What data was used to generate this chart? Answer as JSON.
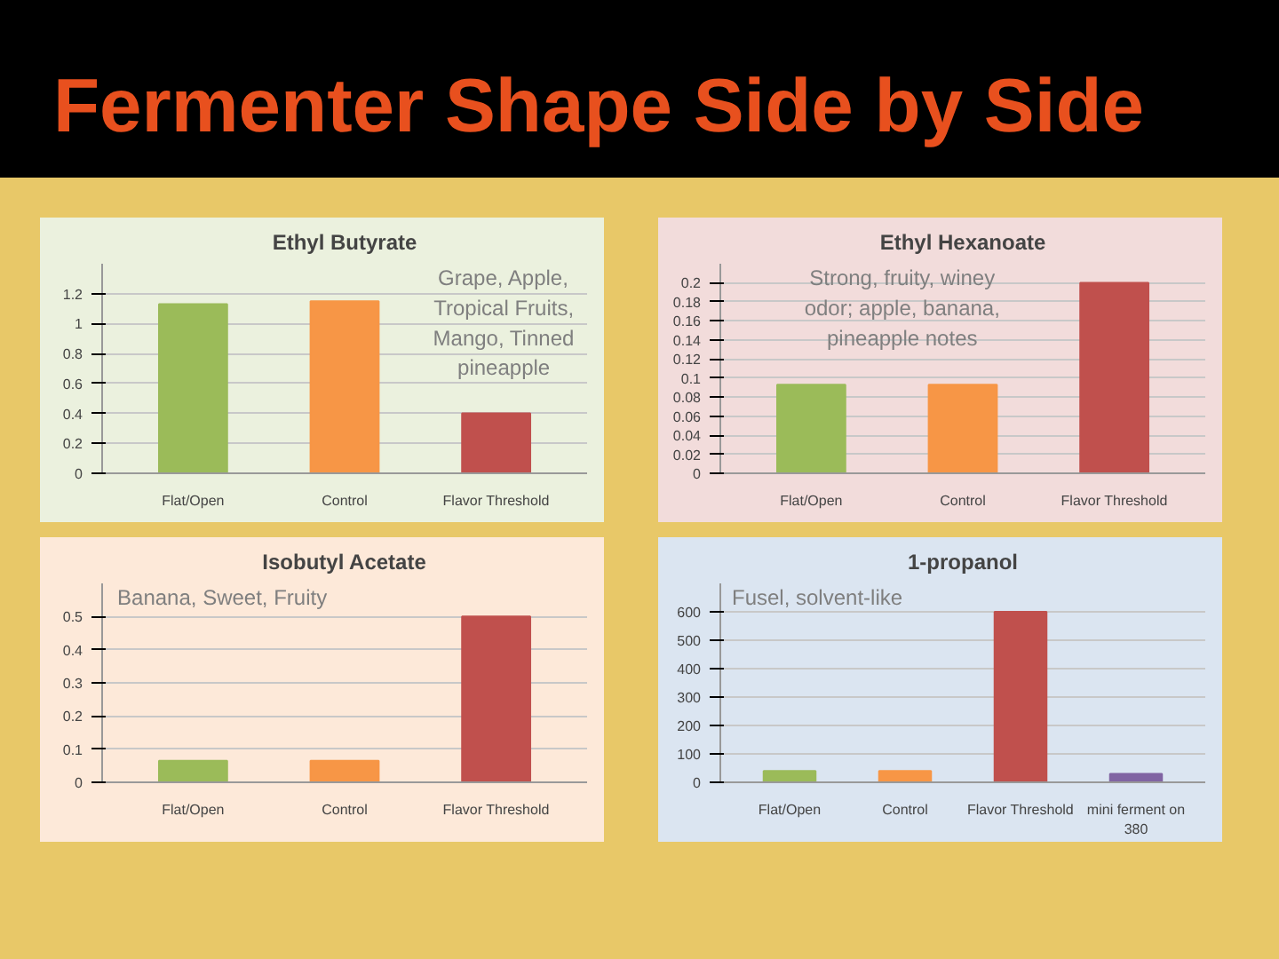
{
  "chart_data": [
    {
      "type": "bar",
      "title": "Ethyl Butyrate",
      "categories": [
        "Flat/Open",
        "Control",
        "Flavor Threshold"
      ],
      "values": [
        1.13,
        1.15,
        0.4
      ],
      "colors": [
        "#9bbb59",
        "#f79646",
        "#c0504d"
      ],
      "ylim": [
        0,
        1.4
      ],
      "yticks": [
        0,
        0.2,
        0.4,
        0.6,
        0.8,
        1,
        1.2
      ],
      "grid": "y",
      "annotations": [
        "Fermenter Shape Side by Side",
        "Grape, Apple, Tropical Fruits, Mango, Tinned pineapple"
      ]
    },
    {
      "type": "bar",
      "title": "Ethyl Hexanoate",
      "categories": [
        "Flat/Open",
        "Control",
        "Flavor Threshold"
      ],
      "values": [
        0.093,
        0.093,
        0.2
      ],
      "colors": [
        "#9bbb59",
        "#f79646",
        "#c0504d"
      ],
      "ylim": [
        0,
        0.22
      ],
      "yticks": [
        0,
        0.02,
        0.04,
        0.06,
        0.08,
        0.1,
        0.12,
        0.14,
        0.16,
        0.18,
        0.2
      ],
      "grid": "y",
      "annotations": [
        "Strong, fruity, winey odor; apple, banana, pineapple notes"
      ]
    },
    {
      "type": "bar",
      "title": "Isobutyl Acetate",
      "categories": [
        "Flat/Open",
        "Control",
        "Flavor Threshold"
      ],
      "values": [
        0.065,
        0.065,
        0.5
      ],
      "colors": [
        "#9bbb59",
        "#f79646",
        "#c0504d"
      ],
      "ylim": [
        0,
        0.6
      ],
      "yticks": [
        0,
        0.1,
        0.2,
        0.3,
        0.4,
        0.5
      ],
      "grid": "y",
      "annotations": [
        "Banana, Sweet, Fruity"
      ]
    },
    {
      "type": "bar",
      "title": "1-propanol",
      "categories": [
        "Flat/Open",
        "Control",
        "Flavor Threshold",
        "mini ferment on 380"
      ],
      "values": [
        40,
        40,
        600,
        30
      ],
      "colors": [
        "#9bbb59",
        "#f79646",
        "#c0504d",
        "#8064a2"
      ],
      "ylim": [
        0,
        700
      ],
      "yticks": [
        0,
        100,
        200,
        300,
        400,
        500,
        600
      ],
      "grid": "y",
      "annotations": [
        "Fusel, solvent-like"
      ]
    }
  ]
}
